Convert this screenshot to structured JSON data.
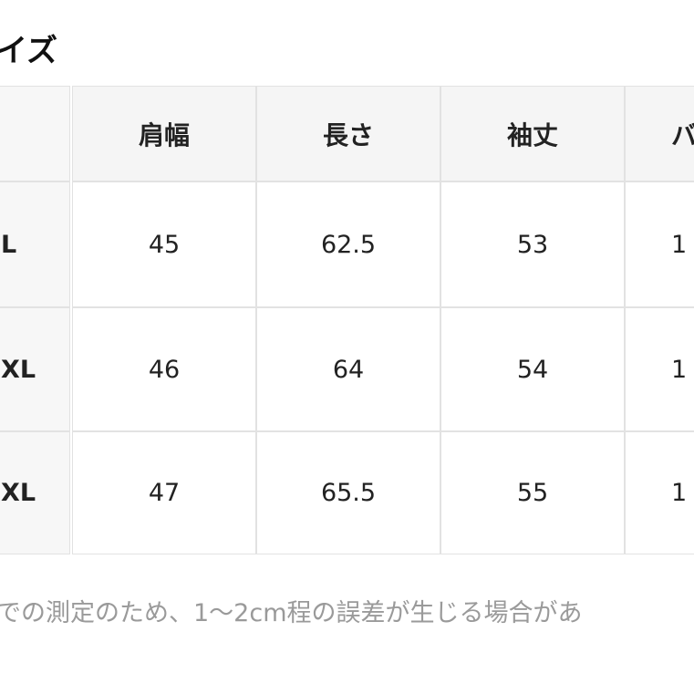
{
  "title": "イズ",
  "table": {
    "header": [
      "肩幅",
      "長さ",
      "袖丈",
      "バ"
    ],
    "rows": [
      {
        "label": "L",
        "cells": [
          45,
          62.5,
          53,
          1
        ]
      },
      {
        "label": "XL",
        "cells": [
          46,
          64,
          54,
          1
        ]
      },
      {
        "label": "XL",
        "cells": [
          47,
          65.5,
          55,
          1
        ]
      }
    ]
  },
  "note": "での測定のため、1〜2cm程の誤差が生じる場合があ"
}
